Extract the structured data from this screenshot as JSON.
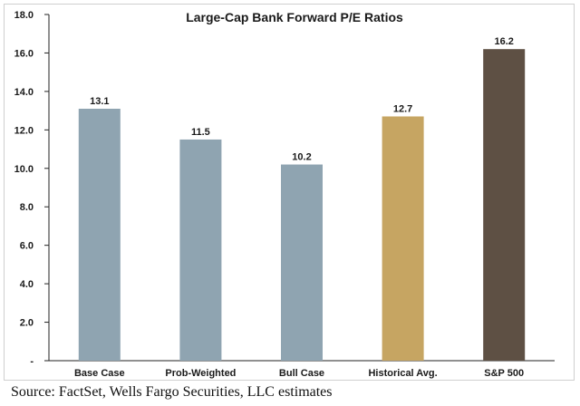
{
  "chart_data": {
    "type": "bar",
    "title": "Large-Cap Bank Forward P/E Ratios",
    "xlabel": "",
    "ylabel": "",
    "categories": [
      "Base Case",
      "Prob-Weighted",
      "Bull Case",
      "Historical Avg.",
      "S&P 500"
    ],
    "values": [
      13.1,
      11.5,
      10.2,
      12.7,
      16.2
    ],
    "value_labels": [
      "13.1",
      "11.5",
      "10.2",
      "12.7",
      "16.2"
    ],
    "colors": [
      "#8fa4b1",
      "#8fa4b1",
      "#8fa4b1",
      "#c6a562",
      "#5e5044"
    ],
    "ylim": [
      0,
      18
    ],
    "yticks": [
      0,
      2,
      4,
      6,
      8,
      10,
      12,
      14,
      16,
      18
    ],
    "ytick_labels": [
      "-",
      "2.0",
      "4.0",
      "6.0",
      "8.0",
      "10.0",
      "12.0",
      "14.0",
      "16.0",
      "18.0"
    ],
    "grid": false,
    "legend": "none"
  },
  "source_note": "Source: FactSet, Wells Fargo Securities, LLC estimates"
}
